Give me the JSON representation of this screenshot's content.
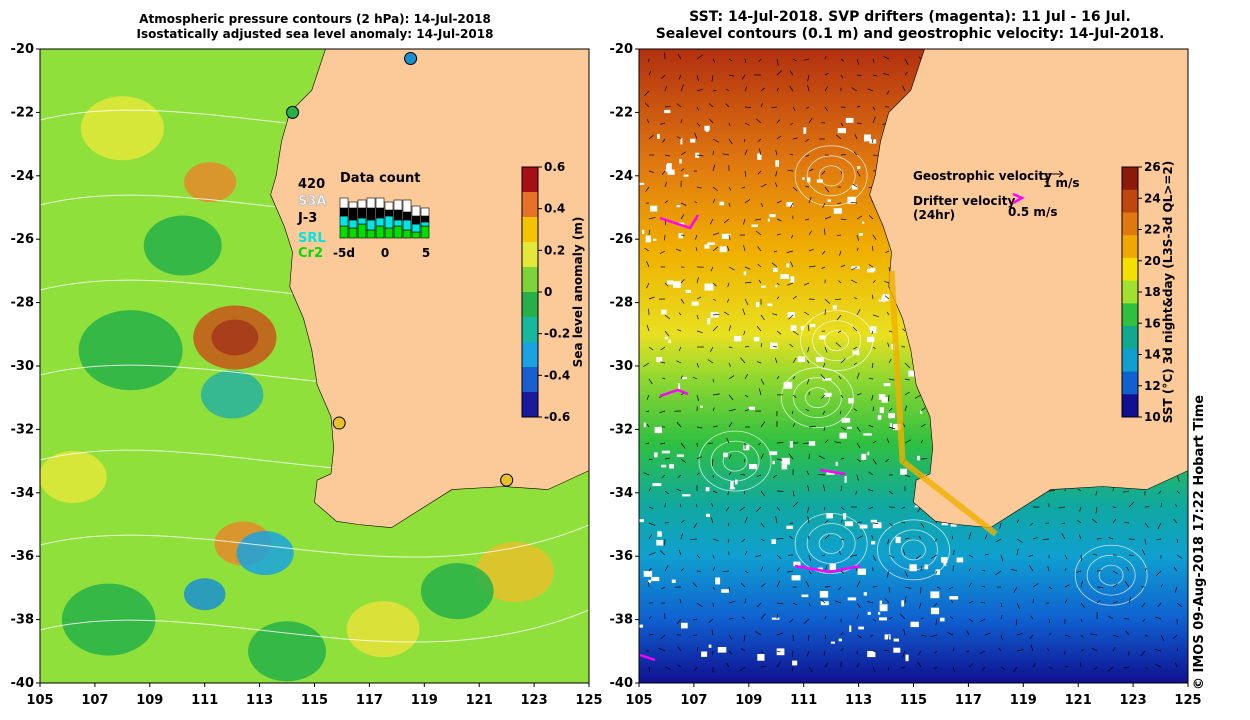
{
  "left_panel": {
    "title_line1": "Atmospheric pressure contours (2 hPa): 14-Jul-2018",
    "title_line2": "Isostatically adjusted sea level anomaly: 14-Jul-2018",
    "lat_ticks": [
      "-20",
      "-22",
      "-24",
      "-26",
      "-28",
      "-30",
      "-32",
      "-34",
      "-36",
      "-38",
      "-40"
    ],
    "lon_ticks": [
      "105",
      "107",
      "109",
      "111",
      "113",
      "115",
      "117",
      "119",
      "121",
      "123",
      "125"
    ],
    "colorbar": {
      "label": "Sea level anomaly (m)",
      "ticks": [
        "0.6",
        "0.4",
        "0.2",
        "0",
        "-0.2",
        "-0.4",
        "-0.6"
      ],
      "colors": [
        "#a50f15",
        "#e8712a",
        "#f5c400",
        "#e3e83a",
        "#7dd33a",
        "#27b04a",
        "#19b7a0",
        "#1aa3e0",
        "#1a5fd0",
        "#1a1a9a"
      ]
    },
    "data_count": {
      "title": "Data count",
      "satellites": [
        {
          "name": "420",
          "color": "#000000"
        },
        {
          "name": "S3A",
          "color": "#ffffff"
        },
        {
          "name": "J-3",
          "color": "#000000"
        },
        {
          "name": "SRL",
          "color": "#00e5e5"
        },
        {
          "name": "Cr2",
          "color": "#00dd00"
        }
      ],
      "x_ticks": [
        "-5d",
        "0",
        "5"
      ]
    },
    "tide_gauge_colors": [
      "#27b04a",
      "#1a8fd0",
      "#e8c12a",
      "#e8c12a"
    ]
  },
  "right_panel": {
    "title_line1": "SST: 14-Jul-2018. SVP drifters (magenta): 11 Jul - 16 Jul.",
    "title_line2": "Sealevel contours (0.1 m) and geostrophic velocity: 14-Jul-2018.",
    "lat_ticks": [
      "-20",
      "-22",
      "-24",
      "-26",
      "-28",
      "-30",
      "-32",
      "-34",
      "-36",
      "-38",
      "-40"
    ],
    "lon_ticks": [
      "105",
      "107",
      "109",
      "111",
      "113",
      "115",
      "117",
      "119",
      "121",
      "123",
      "125"
    ],
    "legend": {
      "geo_label": "Geostrophic velocity",
      "geo_value": "1 m/s",
      "drifter_label1": "Drifter velocity",
      "drifter_label2": "(24hr)",
      "drifter_value": "0.5 m/s",
      "drifter_color": "#ff00ff"
    },
    "colorbar": {
      "label": "SST (°C) 3d night&day (L3S-3d QL>=2)",
      "ticks": [
        "26",
        "24",
        "22",
        "20",
        "18",
        "16",
        "14",
        "12",
        "10"
      ],
      "colors": [
        "#8b1a0a",
        "#c0460f",
        "#e07810",
        "#f0a800",
        "#f4e000",
        "#a0e030",
        "#30c040",
        "#10a890",
        "#10a0d0",
        "#1060d0",
        "#101090"
      ]
    }
  },
  "land_color": "#fcc998",
  "credit": "© IMOS 09-Aug-2018 17:22 Hobart Time"
}
